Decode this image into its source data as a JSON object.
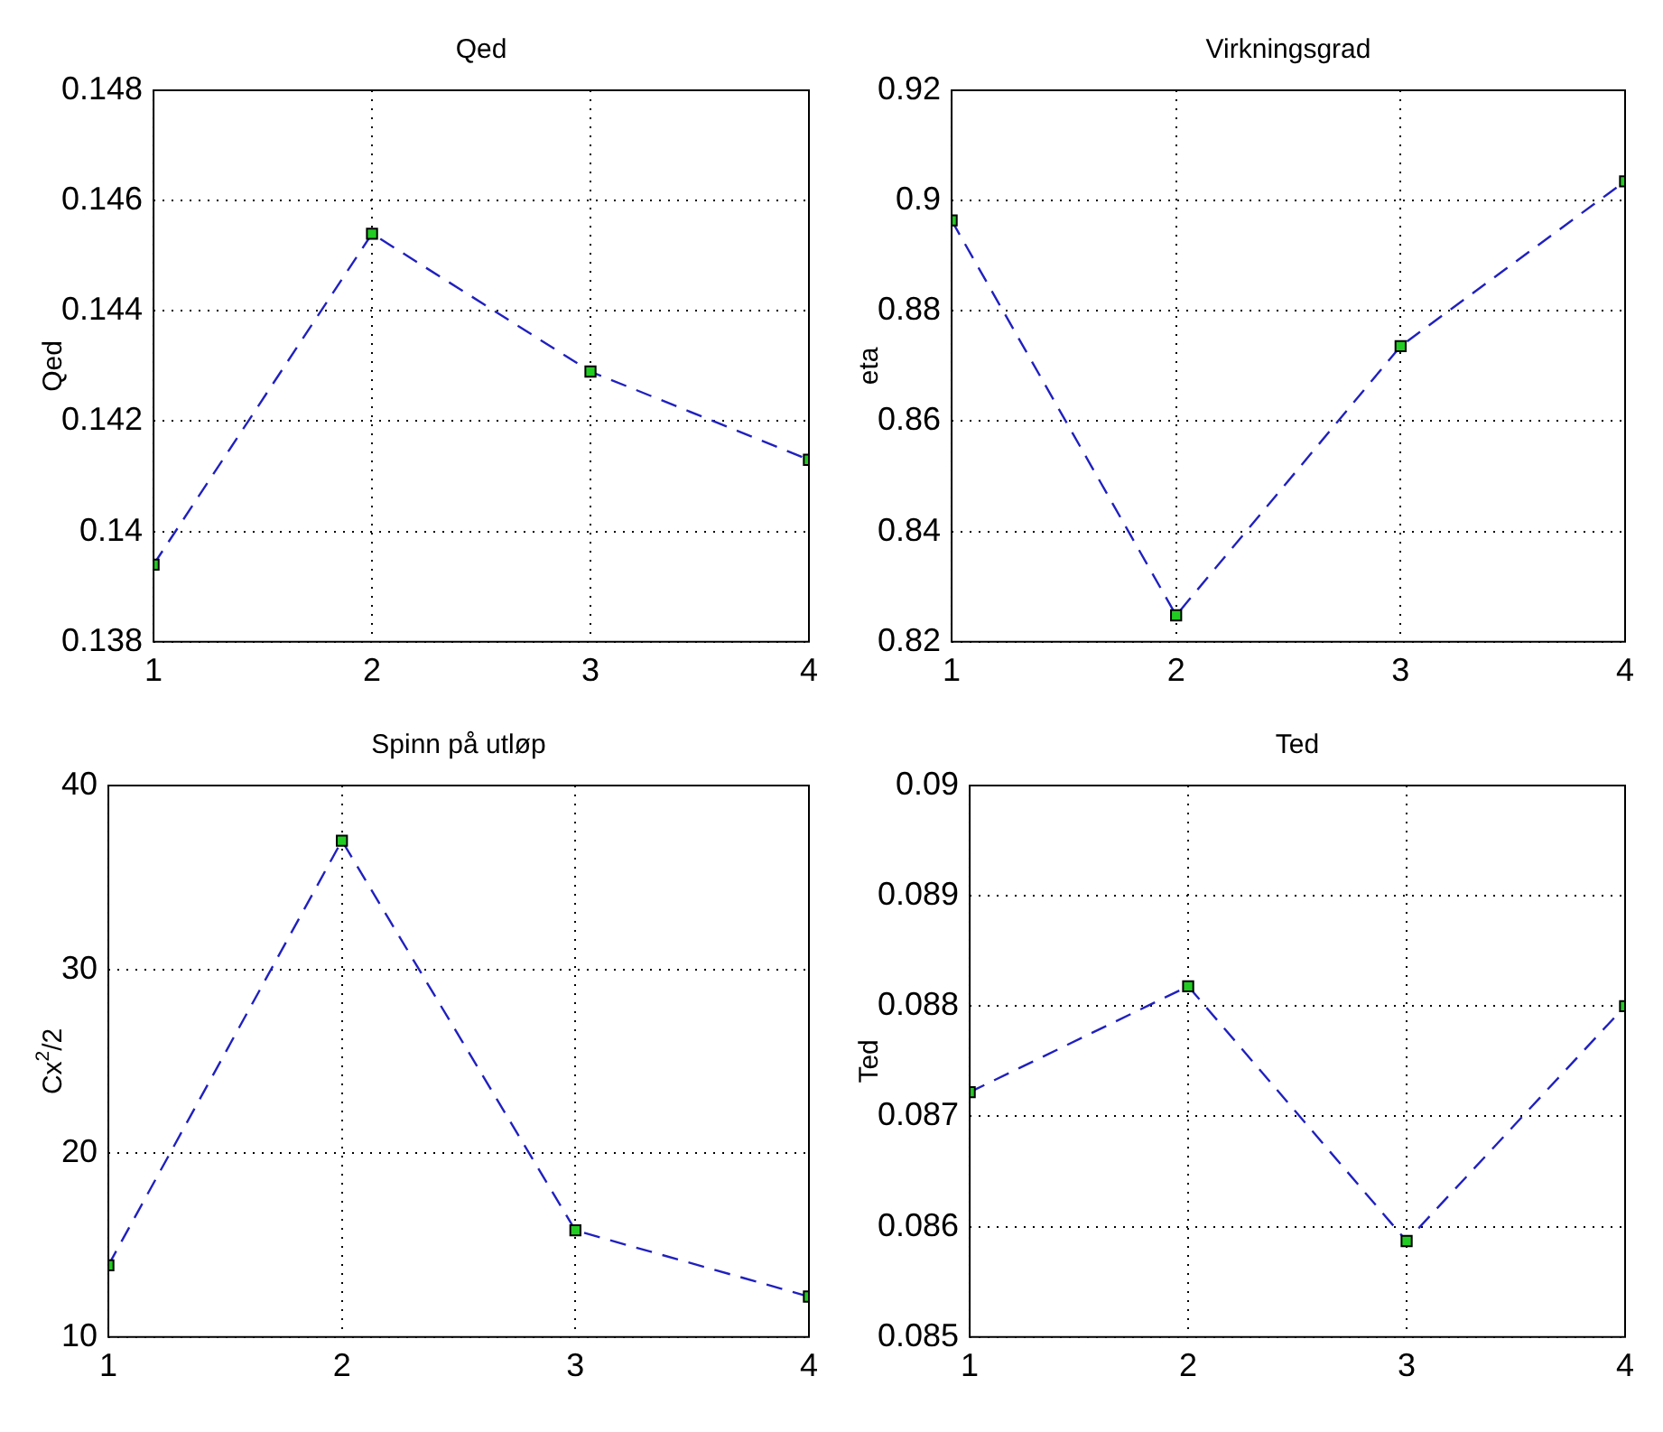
{
  "chart_data": [
    {
      "type": "line",
      "title": "Qed",
      "ylabel": "Qed",
      "x": [
        1,
        2,
        3,
        4
      ],
      "xlim": [
        1,
        4
      ],
      "xticks": [
        1,
        2,
        3,
        4
      ],
      "ylim": [
        0.138,
        0.148
      ],
      "yticks": [
        0.138,
        0.14,
        0.142,
        0.144,
        0.146,
        0.148
      ],
      "grid": true,
      "marker": "square",
      "line_style": "dashed",
      "color": "#2020c0",
      "values": [
        0.1394,
        0.1454,
        0.1429,
        0.1413
      ]
    },
    {
      "type": "line",
      "title": "Virkningsgrad",
      "ylabel": "eta",
      "x": [
        1,
        2,
        3,
        4
      ],
      "xlim": [
        1,
        4
      ],
      "xticks": [
        1,
        2,
        3,
        4
      ],
      "ylim": [
        0.82,
        0.92
      ],
      "yticks": [
        0.82,
        0.84,
        0.86,
        0.88,
        0.9,
        0.92
      ],
      "grid": true,
      "marker": "square",
      "line_style": "dashed",
      "color": "#2020c0",
      "values": [
        0.8964,
        0.8248,
        0.8736,
        0.9035
      ]
    },
    {
      "type": "line",
      "title": "Spinn på utløp",
      "ylabel": "Cx$^{2}$/2",
      "x": [
        1,
        2,
        3,
        4
      ],
      "xlim": [
        1,
        4
      ],
      "xticks": [
        1,
        2,
        3,
        4
      ],
      "ylim": [
        10,
        40
      ],
      "yticks": [
        10,
        20,
        30,
        40
      ],
      "grid": true,
      "marker": "square",
      "line_style": "dashed",
      "color": "#2020c0",
      "values": [
        13.9,
        37.0,
        15.8,
        12.2
      ]
    },
    {
      "type": "line",
      "title": "Ted",
      "ylabel": "Ted",
      "x": [
        1,
        2,
        3,
        4
      ],
      "xlim": [
        1,
        4
      ],
      "xticks": [
        1,
        2,
        3,
        4
      ],
      "ylim": [
        0.085,
        0.09
      ],
      "yticks": [
        0.085,
        0.086,
        0.087,
        0.088,
        0.089,
        0.09
      ],
      "grid": true,
      "marker": "square",
      "line_style": "dashed",
      "color": "#2020c0",
      "values": [
        0.08722,
        0.08818,
        0.08587,
        0.088
      ]
    }
  ]
}
